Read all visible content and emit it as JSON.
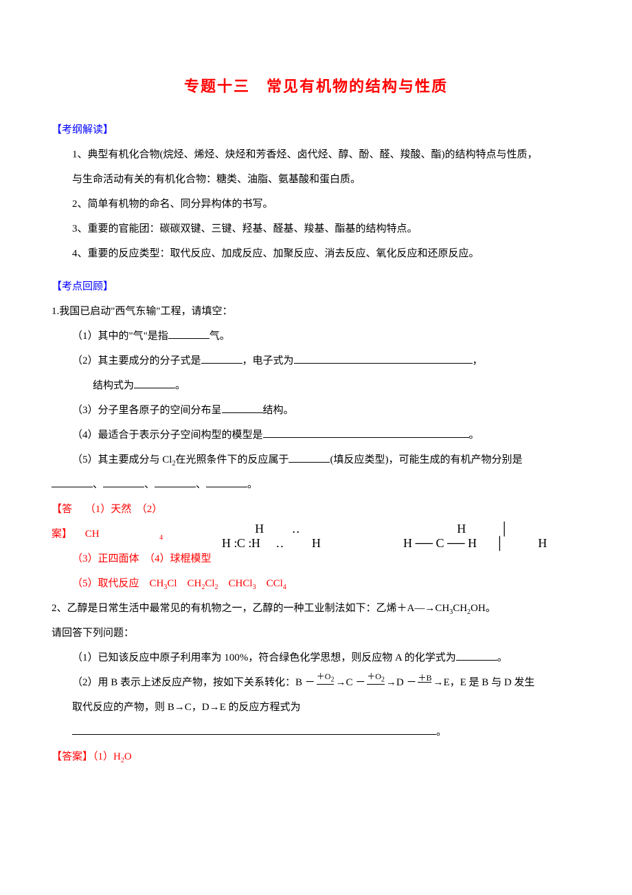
{
  "title": "专题十三　常见有机物的结构与性质",
  "sections": {
    "syllabus_label": "【考纲解读】",
    "review_label": "【考点回顾】",
    "answer_label": "【答案】"
  },
  "syllabus": {
    "item1a": "1、典型有机化合物(烷烃、烯烃、炔烃和芳香烃、卤代烃、醇、酚、醛、羧酸、酯)的结构特点与性质，",
    "item1b": "与生命活动有关的有机化合物：糖类、油脂、氨基酸和蛋白质。",
    "item2": "2、简单有机物的命名、同分异构体的书写。",
    "item3": "3、重要的官能团：碳碳双键、三键、羟基、醛基、羧基、酯基的结构特点。",
    "item4": "4、重要的反应类型：取代反应、加成反应、加聚反应、消去反应、氧化反应和还原反应。"
  },
  "q1": {
    "stem": "1.我国已启动\"西气东输\"工程，请填空：",
    "p1a": "（1）其中的\"气\"是指",
    "p1b": "气。",
    "p2a": "（2）其主要成分的分子式是",
    "p2b": "，电子式为",
    "p2c": "，",
    "p2d": "结构式为",
    "p2e": "。",
    "p3a": "（3）分子里各原子的空间分布呈",
    "p3b": "结构。",
    "p4a": "（4）最适合于表示分子空间构型的模型是",
    "p4b": "。",
    "p5a": "（5）其主要成分与 Cl",
    "p5a_sub": "2",
    "p5b": "在光照条件下的反应属于",
    "p5c": "(填反应类型)，可能生成的有机产物分别是",
    "p5d": "、",
    "p5e": "。"
  },
  "a1": {
    "l1_pre": "（1）天然　（2）CH",
    "l1_sub": "4",
    "l2": "（3）正四面体　（4）球棍模型",
    "l3_pre": "（5）取代反应　CH",
    "l3_a": "3",
    "l3_b": "Cl　CH",
    "l3_c": "2",
    "l3_d": "Cl",
    "l3_e": "2",
    "l3_f": "　CHCl",
    "l3_g": "3",
    "l3_h": "　CCl",
    "l3_i": "4"
  },
  "q2": {
    "stem_a": "2、乙醇是日常生活中最常见的有机物之一，乙醇的一种工业制法如下：乙烯＋A―→CH",
    "stem_sub1": "3",
    "stem_b": "CH",
    "stem_sub2": "2",
    "stem_c": "OH。",
    "stem2": "请回答下列问题：",
    "p1a": "（1）已知该反应中原子利用率为 100%，符合绿色化学思想，则反应物 A 的化学式为",
    "p1b": "。",
    "p2a": "（2）用 B 表示上述反应产物，按如下关系转化：B －",
    "arrow_top1": "＋O",
    "arrow_top1_sub": "2",
    "p2b": "→C －",
    "p2c": "→D －",
    "arrow_top3": "＋B",
    "p2d": "→E，E 是 B 与 D 发生",
    "p2e": "取代反应的产物，则 B→C，D→E 的反应方程式为",
    "p2f": "。"
  },
  "a2": {
    "l1_pre": "（1）H",
    "l1_sub": "2",
    "l1_post": "O"
  },
  "structures": {
    "lewis_rows": [
      "    H    ",
      "    ‥    ",
      "H ׃ C ׃ H",
      "    ‥    ",
      "    H    "
    ],
    "bond_rows": [
      "     H     ",
      "     │     ",
      "H ── C ── H",
      "     │     ",
      "     H     "
    ]
  }
}
